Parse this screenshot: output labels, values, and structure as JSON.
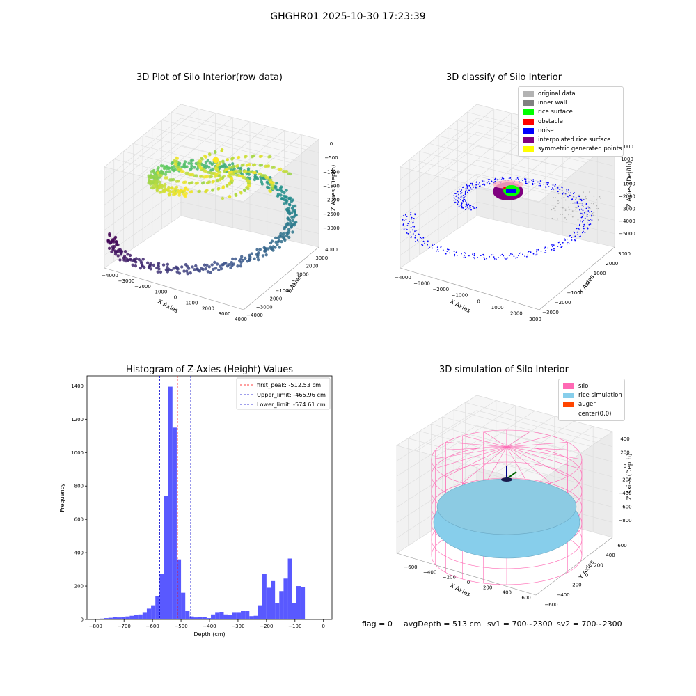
{
  "figure": {
    "suptitle": "GHGHR01 2025-10-30 17:23:39",
    "footer": {
      "flag": "flag = 0",
      "avg_depth": "avgDepth = 513 cm",
      "sv1": "sv1 = 700~2300",
      "sv2": "sv2 = 700~2300"
    }
  },
  "chart_data": [
    {
      "type": "scatter",
      "projection": "3d",
      "title": "3D Plot of Silo Interior(row data)",
      "xlabel": "X Axies",
      "ylabel": "Y Axies",
      "zlabel": "Z Axies (Depth)",
      "xticks": [
        "−4000",
        "−3000",
        "−2000",
        "−1000",
        "0",
        "1000",
        "2000",
        "3000",
        "4000"
      ],
      "yticks": [
        "−4000",
        "−3000",
        "−2000",
        "−1000",
        "0",
        "1000",
        "2000",
        "3000",
        "4000"
      ],
      "zticks": [
        "−3000",
        "−2500",
        "−2000",
        "−1500",
        "−1000",
        "−500",
        "0"
      ],
      "xlim": [
        -4200,
        4200
      ],
      "ylim": [
        -4200,
        4200
      ],
      "zlim": [
        -3300,
        200
      ],
      "colormap": "viridis",
      "description_points": [
        {
          "x": 0,
          "y": -2000,
          "z": -3100
        },
        {
          "x": 2000,
          "y": -1500,
          "z": -3050
        },
        {
          "x": 3000,
          "y": 0,
          "z": -2800
        },
        {
          "x": 2500,
          "y": 1500,
          "z": -2400
        },
        {
          "x": 0,
          "y": 2000,
          "z": -1000
        },
        {
          "x": -1500,
          "y": 1500,
          "z": -1300
        },
        {
          "x": -3800,
          "y": 1200,
          "z": -800
        },
        {
          "x": -3000,
          "y": -1500,
          "z": -2900
        }
      ]
    },
    {
      "type": "scatter",
      "projection": "3d",
      "title": "3D classify of Silo Interior",
      "xlabel": "X Axies",
      "ylabel": "Y Axies",
      "zlabel": "Z Axies (Depth)",
      "xticks": [
        "−4000",
        "−3000",
        "−2000",
        "−1000",
        "0",
        "1000",
        "2000",
        "3000"
      ],
      "yticks": [
        "−3000",
        "−2000",
        "−1000",
        "0",
        "1000",
        "2000",
        "3000"
      ],
      "zticks": [
        "−5000",
        "−4000",
        "−3000",
        "−2000",
        "−1000",
        "0",
        "1000",
        "2000"
      ],
      "legend": [
        {
          "label": "original data",
          "color": "#b3b3b3"
        },
        {
          "label": "inner wall",
          "color": "#808080"
        },
        {
          "label": "rice surface",
          "color": "#00ff00"
        },
        {
          "label": "obstacle",
          "color": "#ff0000"
        },
        {
          "label": "noise",
          "color": "#0000ff"
        },
        {
          "label": "interpolated rice surface",
          "color": "#800080"
        },
        {
          "label": "symmetric generated points",
          "color": "#ffff00"
        }
      ],
      "legend_position": "top-right"
    },
    {
      "type": "bar",
      "title": "Histogram of Z-Axies (Height) Values",
      "xlabel": "Depth (cm)",
      "ylabel": "Frequency",
      "xlim": [
        -830,
        30
      ],
      "ylim": [
        0,
        1460
      ],
      "bin_width": 15,
      "bin_start": -800,
      "color": "#5050ff",
      "values": [
        3,
        5,
        8,
        10,
        15,
        12,
        15,
        18,
        22,
        28,
        30,
        40,
        65,
        85,
        140,
        275,
        740,
        1395,
        1150,
        360,
        160,
        50,
        18,
        12,
        15,
        15,
        8,
        30,
        40,
        45,
        30,
        25,
        40,
        40,
        50,
        50,
        20,
        22,
        85,
        275,
        190,
        230,
        100,
        170,
        245,
        365,
        100,
        200,
        195
      ],
      "xticks": [
        "−800",
        "−700",
        "−600",
        "−500",
        "−400",
        "−300",
        "−200",
        "−100",
        "0"
      ],
      "yticks": [
        "0",
        "200",
        "400",
        "600",
        "800",
        "1000",
        "1200",
        "1400"
      ],
      "vlines": [
        {
          "label": "first_peak: -512.53 cm",
          "x": -512.53,
          "color": "#ff0000"
        },
        {
          "label": "Upper_limit: -465.96 cm",
          "x": -465.96,
          "color": "#0000cc"
        },
        {
          "label": "Lower_limit: -574.61 cm",
          "x": -574.61,
          "color": "#0000cc"
        }
      ],
      "legend_position": "top-right"
    },
    {
      "type": "scatter",
      "projection": "3d",
      "title": "3D simulation of Silo Interior",
      "xlabel": "X Axies",
      "ylabel": "Y Axies",
      "zlabel": "Z Axies (Depth)",
      "xticks": [
        "−600",
        "−400",
        "−200",
        "0",
        "200",
        "400",
        "600"
      ],
      "yticks": [
        "−600",
        "−400",
        "−200",
        "0",
        "200",
        "400",
        "600"
      ],
      "zticks": [
        "−800",
        "−600",
        "−400",
        "−200",
        "0",
        "200",
        "400"
      ],
      "legend": [
        {
          "label": "silo",
          "color": "#ff69b4"
        },
        {
          "label": "rice simulation",
          "color": "#87ceeb"
        },
        {
          "label": "auger",
          "color": "#ff4500"
        },
        {
          "label": "center(0,0)",
          "color": "#ffffff"
        }
      ],
      "legend_position": "top-right"
    }
  ]
}
